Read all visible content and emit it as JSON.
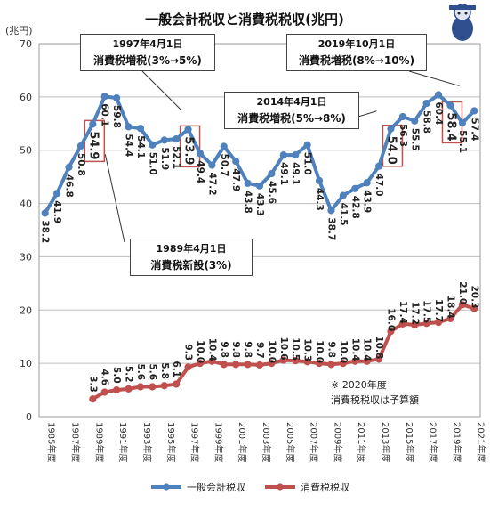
{
  "chart_data": {
    "type": "line",
    "title": "一般会計税収と消費税税収(兆円)",
    "ylabel": "(兆円)",
    "ylim": [
      0,
      70
    ],
    "yticks": [
      "0",
      "10",
      "20",
      "30",
      "40",
      "50",
      "60",
      "70"
    ],
    "grid": true,
    "legend_position": "bottom",
    "x": [
      "1985年度",
      "1986年度",
      "1987年度",
      "1988年度",
      "1989年度",
      "1990年度",
      "1991年度",
      "1992年度",
      "1993年度",
      "1994年度",
      "1995年度",
      "1996年度",
      "1997年度",
      "1998年度",
      "1999年度",
      "2000年度",
      "2001年度",
      "2002年度",
      "2003年度",
      "2004年度",
      "2005年度",
      "2006年度",
      "2007年度",
      "2008年度",
      "2009年度",
      "2010年度",
      "2011年度",
      "2012年度",
      "2013年度",
      "2014年度",
      "2015年度",
      "2016年度",
      "2017年度",
      "2018年度",
      "2019年度",
      "2020年度",
      "2021年度"
    ],
    "xtick_labels": [
      "1985年度",
      "",
      "1987年度",
      "",
      "1989年度",
      "",
      "1991年度",
      "",
      "1993年度",
      "",
      "1995年度",
      "",
      "1997年度",
      "",
      "1999年度",
      "",
      "2001年度",
      "",
      "2003年度",
      "",
      "2005年度",
      "",
      "2007年度",
      "",
      "2009年度",
      "",
      "2011年度",
      "",
      "2013年度",
      "",
      "2015年度",
      "",
      "2017年度",
      "",
      "2019年度",
      "",
      "2021年度"
    ],
    "series": [
      {
        "name": "一般会計税収",
        "color": "#4f81bd",
        "values": [
          38.2,
          41.9,
          46.8,
          50.8,
          54.9,
          60.1,
          59.8,
          54.4,
          54.1,
          51.0,
          51.9,
          52.1,
          53.9,
          49.4,
          47.2,
          50.7,
          47.9,
          43.8,
          43.3,
          45.6,
          49.1,
          49.1,
          51.0,
          44.3,
          38.7,
          41.5,
          42.8,
          43.9,
          47.0,
          54.0,
          56.3,
          55.5,
          58.8,
          60.4,
          58.4,
          55.1,
          57.4
        ],
        "labels": [
          "38.2",
          "41.9",
          "46.8",
          "50.8",
          "54.9",
          "60.1",
          "59.8",
          "54.4",
          "54.1",
          "51.0",
          "51.9",
          "52.1",
          "53.9",
          "49.4",
          "47.2",
          "50.7",
          "47.9",
          "43.8",
          "43.3",
          "45.6",
          "49.1",
          "49.1",
          "51.0",
          "44.3",
          "38.7",
          "41.5",
          "42.8",
          "43.9",
          "47.0",
          "54.0",
          "56.3",
          "55.5",
          "58.8",
          "60.4",
          "58.4",
          "55.1",
          "57.4"
        ]
      },
      {
        "name": "消費税税収",
        "color": "#c0504d",
        "values": [
          null,
          null,
          null,
          null,
          3.3,
          4.6,
          5.0,
          5.2,
          5.6,
          5.6,
          5.8,
          6.1,
          9.3,
          10.0,
          10.4,
          9.8,
          9.8,
          9.8,
          9.7,
          10.0,
          10.6,
          10.5,
          10.3,
          10.0,
          9.8,
          10.0,
          10.4,
          10.4,
          10.8,
          16.0,
          17.4,
          17.2,
          17.5,
          17.7,
          18.4,
          21.0,
          20.3
        ],
        "labels": [
          null,
          null,
          null,
          null,
          "3.3",
          "4.6",
          "5.0",
          "5.2",
          "5.6",
          "5.6",
          "5.8",
          "6.1",
          "9.3",
          "10.0",
          "10.4",
          "9.8",
          "9.8",
          "9.8",
          "9.7",
          "10.0",
          "10.6",
          "10.5",
          "10.3",
          "10.0",
          "9.8",
          "10.0",
          "10.4",
          "10.4",
          "10.8",
          "16.0",
          "17.4",
          "17.2",
          "17.5",
          "17.7",
          "18.4",
          "21.0",
          "20.3"
        ]
      }
    ],
    "highlighted_labels": [
      4,
      12,
      29,
      34
    ],
    "annotations": [
      {
        "id": "tax-1989",
        "line1": "1989年4月1日",
        "line2": "消費税新設(3%)"
      },
      {
        "id": "tax-1997",
        "line1": "1997年4月1日",
        "line2": "消費税増税(3%→5%)"
      },
      {
        "id": "tax-2014",
        "line1": "2014年4月1日",
        "line2": "消費税増税(5%→8%)"
      },
      {
        "id": "tax-2019",
        "line1": "2019年10月1日",
        "line2": "消費税増税(8%→10%)"
      }
    ],
    "note": {
      "line1": "※ 2020年度",
      "line2": "消費税税収は予算額"
    }
  }
}
